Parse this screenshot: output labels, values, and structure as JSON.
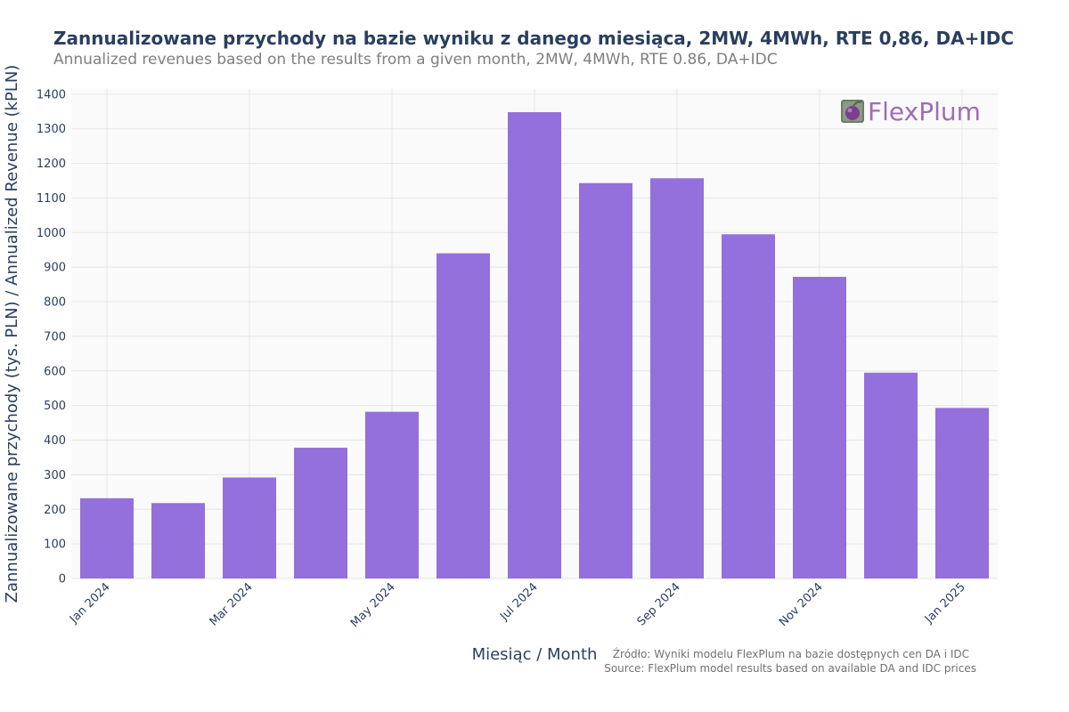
{
  "chart_data": {
    "type": "bar",
    "title": "Zannualizowane przychody na bazie wyniku z danego miesiąca, 2MW, 4MWh, RTE 0,86, DA+IDC",
    "subtitle": "Annualized revenues based on the results from a given month, 2MW, 4MWh, RTE 0.86, DA+IDC",
    "xlabel": "Miesiąc / Month",
    "ylabel": "Zannualizowane przychody (tys. PLN) / Annualized Revenue (kPLN)",
    "categories": [
      "2024-01",
      "2024-02",
      "2024-03",
      "2024-04",
      "2024-05",
      "2024-06",
      "2024-07",
      "2024-08",
      "2024-09",
      "2024-10",
      "2024-11",
      "2024-12",
      "2025-01"
    ],
    "values": [
      232,
      218,
      292,
      378,
      482,
      940,
      1348,
      1143,
      1157,
      995,
      872,
      595,
      493
    ],
    "x_tick_labels": [
      {
        "index": 0,
        "label": "Jan 2024"
      },
      {
        "index": 2,
        "label": "Mar 2024"
      },
      {
        "index": 4,
        "label": "May 2024"
      },
      {
        "index": 6,
        "label": "Jul 2024"
      },
      {
        "index": 8,
        "label": "Sep 2024"
      },
      {
        "index": 10,
        "label": "Nov 2024"
      },
      {
        "index": 12,
        "label": "Jan 2025"
      }
    ],
    "y_ticks": [
      0,
      100,
      200,
      300,
      400,
      500,
      600,
      700,
      800,
      900,
      1000,
      1100,
      1200,
      1300,
      1400
    ],
    "ylim": [
      0,
      1400
    ],
    "grid": true,
    "bar_color": "#9370db",
    "plot_bg": "#fafafa",
    "grid_color": "#e6e6e6"
  },
  "source_note": {
    "line1": "Źródło: Wyniki modelu FlexPlum na bazie dostępnych cen DA i IDC",
    "line2": "Source: FlexPlum model results based on available DA and IDC prices"
  },
  "logo": {
    "text": "FlexPlum",
    "icon": "plum-icon"
  }
}
